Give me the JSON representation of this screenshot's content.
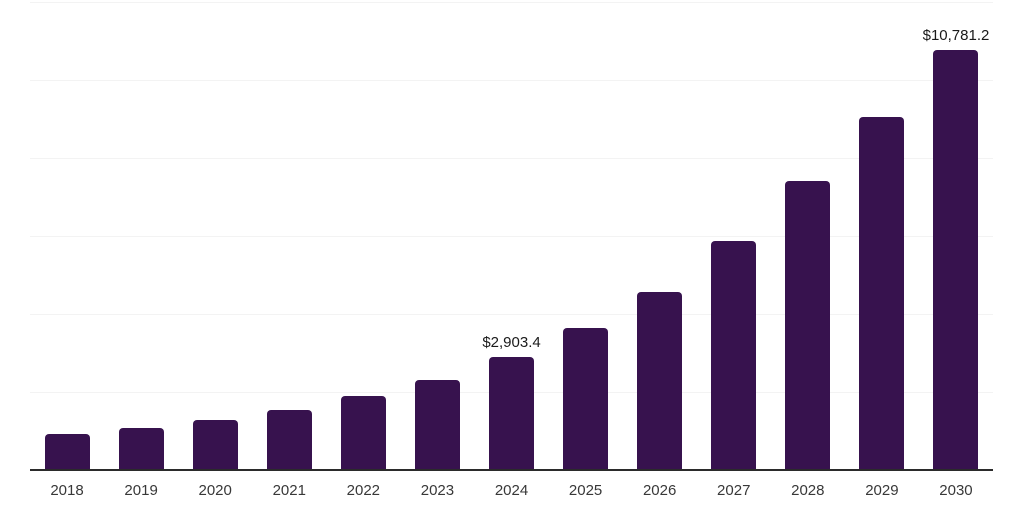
{
  "chart_data": {
    "type": "bar",
    "title": "",
    "xlabel": "",
    "ylabel": "",
    "categories": [
      "2018",
      "2019",
      "2020",
      "2021",
      "2022",
      "2023",
      "2024",
      "2025",
      "2026",
      "2027",
      "2028",
      "2029",
      "2030"
    ],
    "values": [
      920,
      1075,
      1280,
      1530,
      1890,
      2320,
      2903.4,
      3650,
      4570,
      5860,
      7420,
      9060,
      10781.2
    ],
    "value_labels": [
      "",
      "",
      "",
      "",
      "",
      "",
      "$2,903.4",
      "",
      "",
      "",
      "",
      "",
      "$10,781.2"
    ],
    "ylim": [
      0,
      12000
    ],
    "gridline_step": 2000,
    "grid": "horizontal-only",
    "legend": "none",
    "colors": {
      "bar": "#37124E",
      "gridline": "#f3f3f3",
      "axis_line": "#2b2b2b",
      "x_tick_text": "#383838",
      "value_label_text": "#1a1a1a",
      "background": "#ffffff"
    }
  }
}
